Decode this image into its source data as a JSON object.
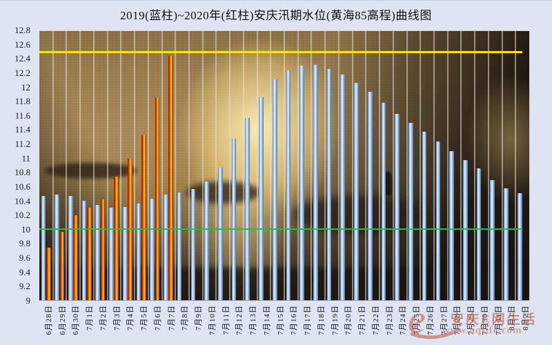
{
  "title": "2019(蓝柱)~2020年(红柱)安庆汛期水位(黄海85高程)曲线图",
  "watermark": {
    "site_name": "安庆E网生活",
    "site_url": "www.aqlife.com",
    "logo_glyph": "e"
  },
  "y_axis": {
    "ticks": [
      "12.8",
      "12.6",
      "12.4",
      "12.2",
      "12",
      "11.8",
      "11.6",
      "11.4",
      "11.2",
      "11",
      "10.8",
      "10.6",
      "10.4",
      "10.2",
      "10",
      "9.8",
      "9.6",
      "9.4",
      "9.2",
      "9"
    ]
  },
  "colors": {
    "page_background": "#dce5f1",
    "bar_2019_blue": "#8fb4e0",
    "bar_2020_red": "#e8540a",
    "warning_line_yellow": "#ffe600",
    "reference_line_green": "#1fc143",
    "value_axis_green": "#2dc84e",
    "gridline": "#e4e0d7",
    "watermark_red": "#c0524a"
  },
  "chart_data": {
    "type": "bar",
    "title": "2019(蓝柱)~2020年(红柱)安庆汛期水位(黄海85高程)曲线图",
    "xlabel": "",
    "ylabel": "",
    "ylim": [
      9,
      12.8
    ],
    "ytick_step": 0.2,
    "grid": "vertical-only",
    "legend_position": "none",
    "background": "photo of river at sunset",
    "categories": [
      "6月28日",
      "6月29日",
      "6月30日",
      "7月1日",
      "7月2日",
      "7月3日",
      "7月4日",
      "7月5日",
      "7月6日",
      "7月7日",
      "7月8日",
      "7月9日",
      "7月10日",
      "7月11日",
      "7月12日",
      "7月13日",
      "7月14日",
      "7月15日",
      "7月16日",
      "7月17日",
      "7月18日",
      "7月19日",
      "7月20日",
      "7月21日",
      "7月22日",
      "7月23日",
      "7月24日",
      "7月25日",
      "7月26日",
      "7月27日",
      "7月28日",
      "7月29日",
      "7月30日",
      "7月31日",
      "8月1日",
      "8月2日"
    ],
    "series": [
      {
        "name": "2019年水位(蓝柱)",
        "color": "blue",
        "values": [
          10.47,
          10.49,
          10.47,
          10.4,
          10.34,
          10.31,
          10.32,
          10.36,
          10.43,
          10.49,
          10.52,
          10.57,
          10.68,
          10.87,
          11.28,
          11.57,
          11.86,
          12.12,
          12.24,
          12.31,
          12.32,
          12.26,
          12.19,
          12.07,
          11.94,
          11.79,
          11.63,
          11.5,
          11.38,
          11.24,
          11.1,
          10.98,
          10.86,
          10.7,
          10.58,
          10.51
        ]
      },
      {
        "name": "2020年水位(红柱)",
        "color": "red",
        "values": [
          9.74,
          9.96,
          10.2,
          10.31,
          10.42,
          10.74,
          11.0,
          11.33,
          11.86,
          12.45,
          null,
          null,
          null,
          null,
          null,
          null,
          null,
          null,
          null,
          null,
          null,
          null,
          null,
          null,
          null,
          null,
          null,
          null,
          null,
          null,
          null,
          null,
          null,
          null,
          null,
          null
        ]
      }
    ],
    "reference_lines": [
      {
        "name": "warning-line",
        "value": 12.5,
        "color": "#ffe600",
        "thickness": 3
      },
      {
        "name": "base-line",
        "value": 10.0,
        "color": "#1fc143",
        "thickness": 2
      }
    ]
  }
}
